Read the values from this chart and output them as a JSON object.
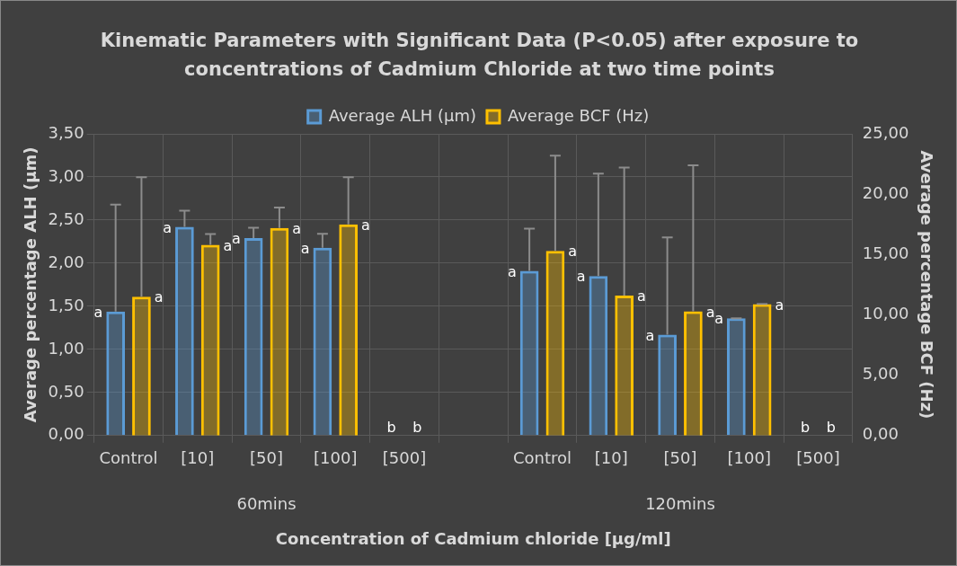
{
  "chart_data": {
    "type": "bar",
    "title": "Kinematic Parameters with Significant Data (P<0.05) after exposure to concentrations of Cadmium Chloride at two time points",
    "xlabel": "Concentration of Cadmium chloride [µg/ml]",
    "ylabel": "Average percentage ALH (µm)",
    "y2label": "Average percentage BCF (Hz)",
    "categories": [
      "Control",
      "[10]",
      "[50]",
      "[100]",
      "[500]",
      null,
      "Control",
      "[10]",
      "[50]",
      "[100]",
      "[500]"
    ],
    "annotations": [
      "60mins",
      "120mins"
    ],
    "series": [
      {
        "name": "Average ALH (µm)",
        "color": "#5b9bd5",
        "values": [
          1.44,
          2.42,
          2.29,
          2.18,
          0,
          null,
          1.91,
          1.85,
          1.17,
          1.36,
          0
        ],
        "errors": [
          [
            1.44,
            2.68
          ],
          [
            2.42,
            2.61
          ],
          [
            2.29,
            2.41
          ],
          [
            2.18,
            2.34
          ],
          null,
          null,
          [
            1.91,
            2.4
          ],
          [
            1.85,
            3.04
          ],
          [
            1.17,
            2.3
          ],
          [
            1.36,
            1.36
          ],
          null
        ],
        "value_labels": [
          "a",
          "a",
          "a",
          "a",
          "b",
          null,
          "a",
          "a",
          "a",
          "a",
          "b"
        ]
      },
      {
        "name": "Average BCF (Hz)",
        "color": "#ffc000",
        "axis": "y2",
        "values": [
          11.5,
          15.8,
          17.2,
          17.5,
          0,
          null,
          15.3,
          11.6,
          10.3,
          10.9,
          0
        ],
        "errors": [
          [
            11.5,
            21.4
          ],
          [
            15.8,
            16.7
          ],
          [
            17.2,
            18.9
          ],
          [
            17.5,
            21.4
          ],
          null,
          null,
          [
            15.3,
            23.2
          ],
          [
            11.6,
            22.2
          ],
          [
            10.3,
            22.4
          ],
          [
            10.9,
            10.9
          ],
          null
        ],
        "value_labels": [
          "a",
          "a",
          "a",
          "a",
          "b",
          null,
          "a",
          "a",
          "a",
          "a",
          "b"
        ]
      }
    ],
    "ylim": [
      0,
      3.5
    ],
    "yticks": [
      {
        "value": 0,
        "label": "0,00"
      },
      {
        "value": 0.5,
        "label": "0,50"
      },
      {
        "value": 1,
        "label": "1,00"
      },
      {
        "value": 1.5,
        "label": "1,50"
      },
      {
        "value": 2,
        "label": "2,00"
      },
      {
        "value": 2.5,
        "label": "2,50"
      },
      {
        "value": 3,
        "label": "3,00"
      },
      {
        "value": 3.5,
        "label": "3,50"
      }
    ],
    "y2lim": [
      0,
      25
    ],
    "y2ticks": [
      {
        "value": 0,
        "label": "0,00"
      },
      {
        "value": 5,
        "label": "5,00"
      },
      {
        "value": 10,
        "label": "10,00"
      },
      {
        "value": 15,
        "label": "15,00"
      },
      {
        "value": 20,
        "label": "20,00"
      },
      {
        "value": 25,
        "label": "25,00"
      }
    ],
    "grid": true,
    "legend": "top"
  }
}
